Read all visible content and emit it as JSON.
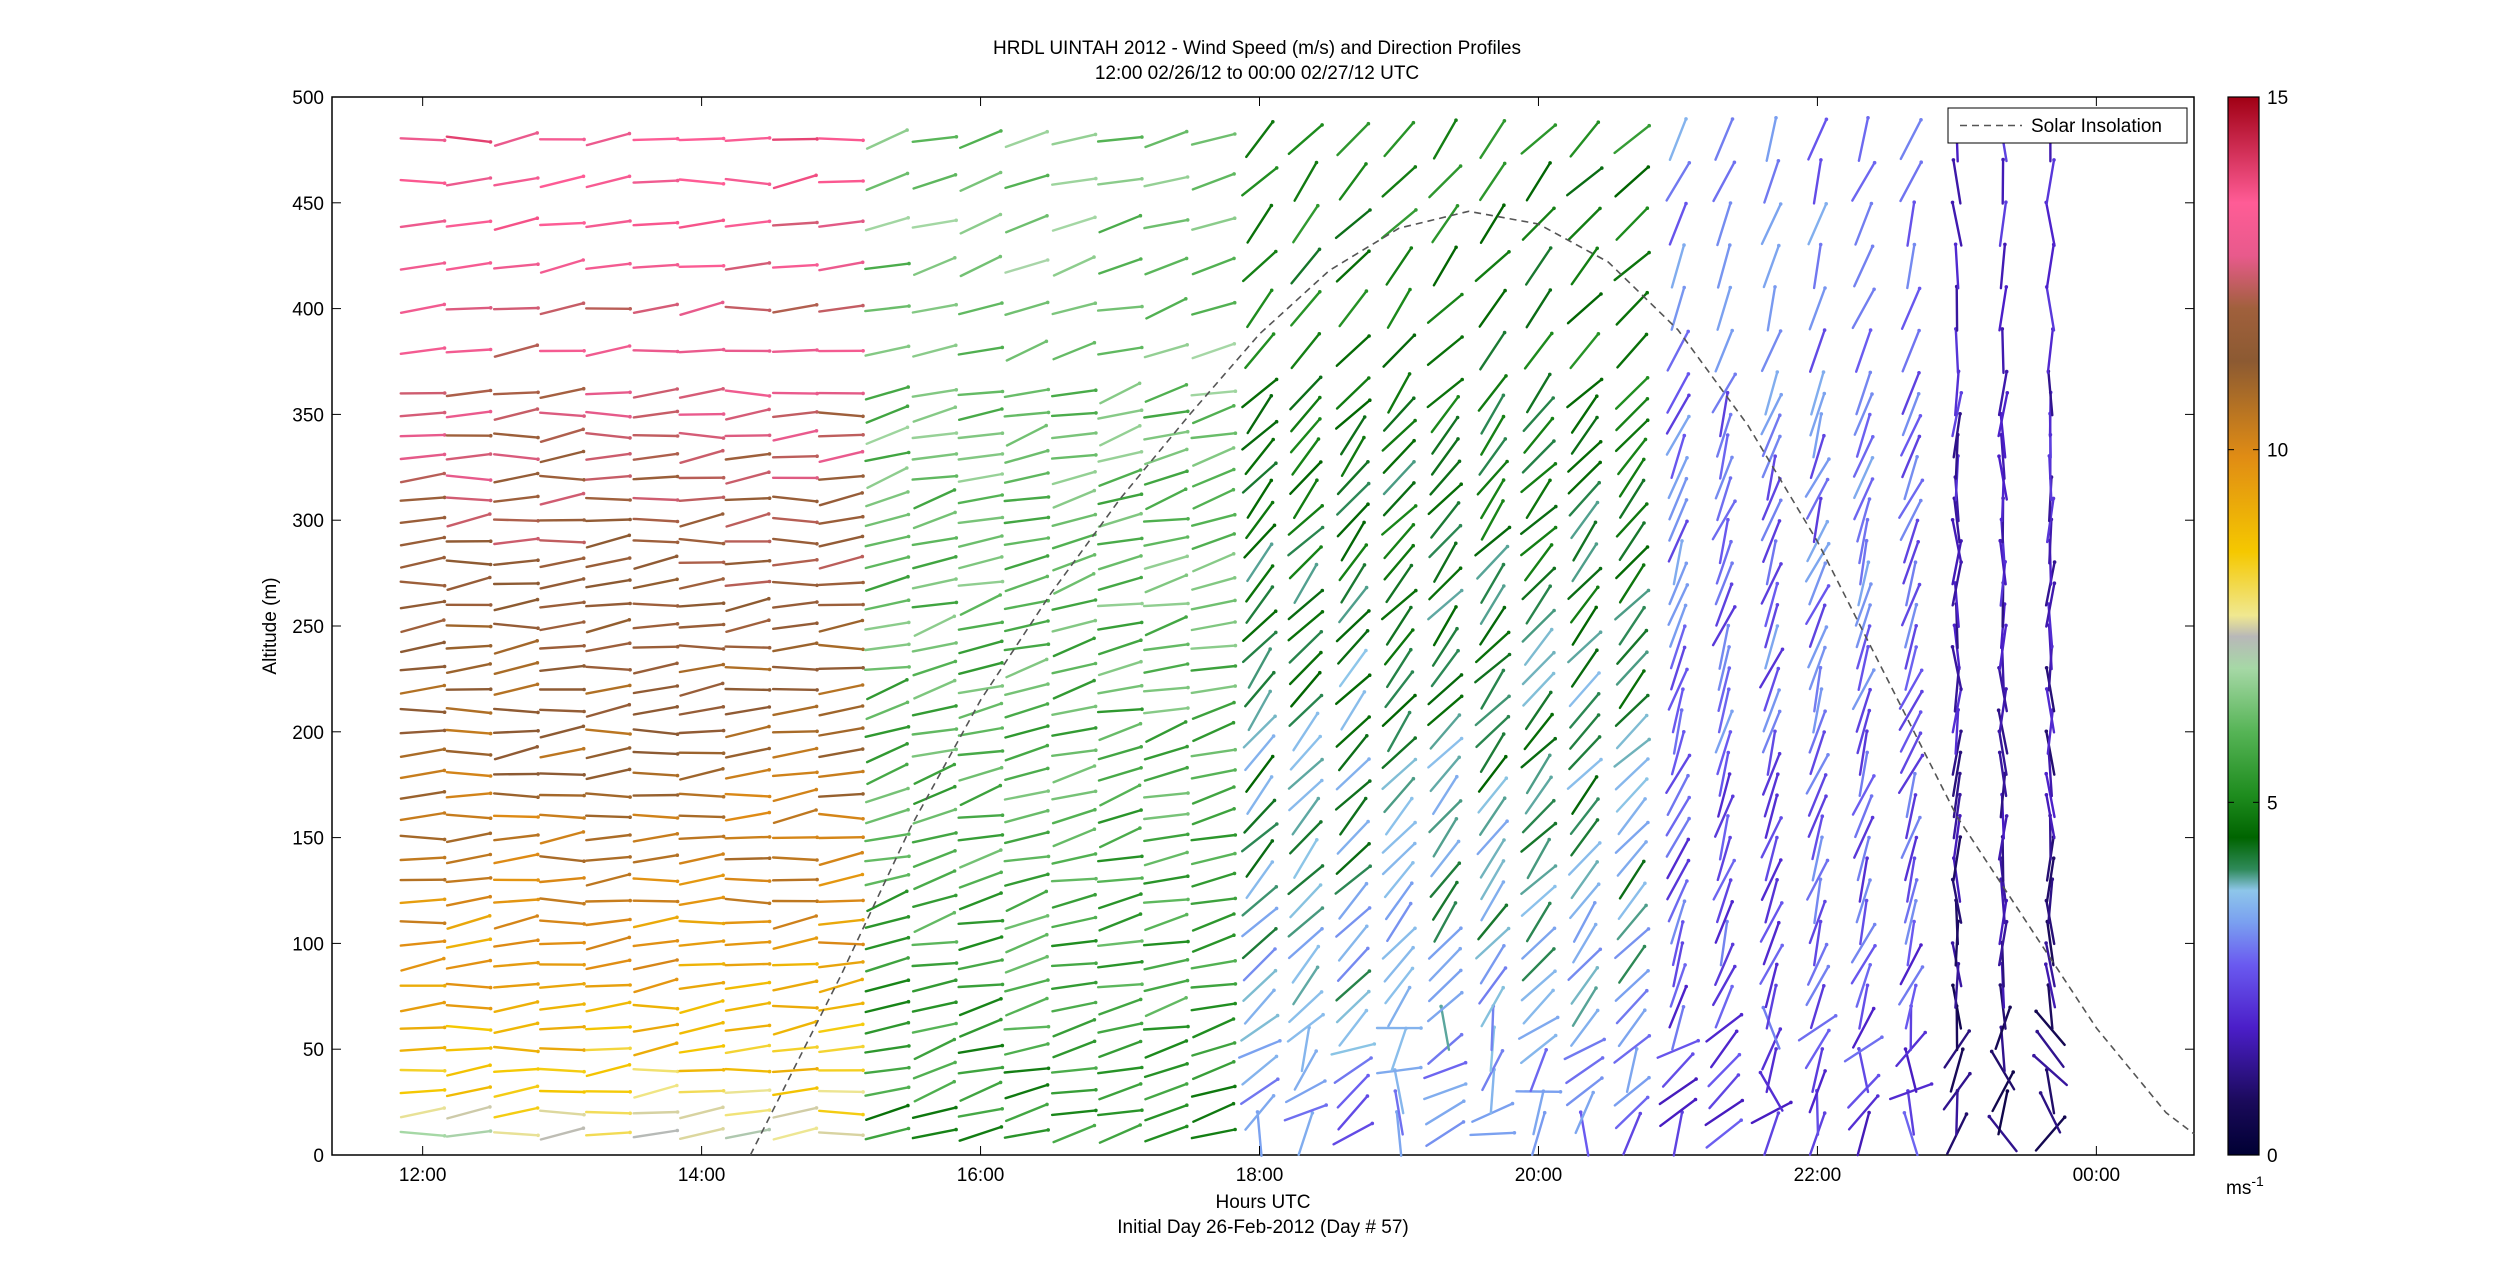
{
  "chart_data": {
    "type": "wind-barb-profile",
    "title": "HRDL UINTAH 2012 - Wind Speed (m/s) and Direction Profiles",
    "subtitle": "12:00 02/26/12 to 00:00 02/27/12  UTC",
    "xlabel": "Hours UTC",
    "xlabel_note": "Initial Day 26-Feb-2012 (Day # 57)",
    "ylabel": "Altitude (m)",
    "x_ticks": [
      "12:00",
      "14:00",
      "16:00",
      "18:00",
      "20:00",
      "22:00",
      "00:00"
    ],
    "x_tick_values": [
      12,
      14,
      16,
      18,
      20,
      22,
      24
    ],
    "xlim": [
      11.35,
      24.7
    ],
    "ylim": [
      0,
      500
    ],
    "y_ticks": [
      "0",
      "50",
      "100",
      "150",
      "200",
      "250",
      "300",
      "350",
      "400",
      "450",
      "500"
    ],
    "y_tick_values": [
      0,
      50,
      100,
      150,
      200,
      250,
      300,
      350,
      400,
      450,
      500
    ],
    "colorbar": {
      "unit_label": "ms",
      "unit_exponent": "-1",
      "ticks": [
        "0",
        "5",
        "10",
        "15"
      ],
      "tick_values": [
        0,
        5,
        10,
        15
      ],
      "range": [
        0,
        15
      ]
    },
    "legend": {
      "entries": [
        "Solar Insolation"
      ],
      "position": "top-right"
    },
    "profile_times": [
      12.0,
      12.33,
      12.67,
      13.0,
      13.33,
      13.67,
      14.0,
      14.33,
      14.67,
      15.0,
      15.33,
      15.67,
      16.0,
      16.33,
      16.67,
      17.0,
      17.33,
      17.67,
      18.0,
      18.33,
      18.67,
      19.0,
      19.33,
      19.67,
      20.0,
      20.33,
      20.67,
      21.0,
      21.33,
      21.67,
      22.0,
      22.33,
      22.67,
      23.0,
      23.33,
      23.67
    ],
    "altitudes": [
      10,
      20,
      30,
      40,
      50,
      60,
      70,
      80,
      90,
      100,
      110,
      120,
      130,
      140,
      150,
      160,
      170,
      180,
      190,
      200,
      210,
      220,
      230,
      240,
      250,
      260,
      270,
      280,
      290,
      300,
      310,
      320,
      330,
      340,
      350,
      360,
      380,
      400,
      420,
      440,
      460,
      480
    ],
    "regimes": [
      {
        "t_start": 11.9,
        "t_end": 15.3,
        "dir_deg": 265,
        "speed_low": 6.5,
        "speed_high": 13.5
      },
      {
        "t_start": 15.3,
        "t_end": 18.0,
        "dir_deg": 255,
        "speed_low": 5.0,
        "speed_high": 6.5
      },
      {
        "t_start": 18.0,
        "t_end": 21.0,
        "dir_deg": 220,
        "speed_low": 2.5,
        "speed_high": 5.0
      },
      {
        "t_start": 21.0,
        "t_end": 23.0,
        "dir_deg": 200,
        "speed_low": 2.0,
        "speed_high": 3.0
      },
      {
        "t_start": 23.0,
        "t_end": 24.0,
        "dir_deg": 180,
        "speed_low": 0.5,
        "speed_high": 2.0
      }
    ],
    "solar_insolation": {
      "series_name": "Solar Insolation",
      "x": [
        14.35,
        15.0,
        15.5,
        16.0,
        16.5,
        17.0,
        17.5,
        18.0,
        18.5,
        19.0,
        19.5,
        20.0,
        20.5,
        21.0,
        21.5,
        22.0,
        22.5,
        23.0,
        23.5,
        24.0,
        24.5,
        24.7
      ],
      "y": [
        0,
        85,
        155,
        215,
        265,
        310,
        350,
        388,
        418,
        438,
        446,
        440,
        422,
        390,
        345,
        290,
        225,
        160,
        110,
        60,
        20,
        10
      ]
    }
  }
}
